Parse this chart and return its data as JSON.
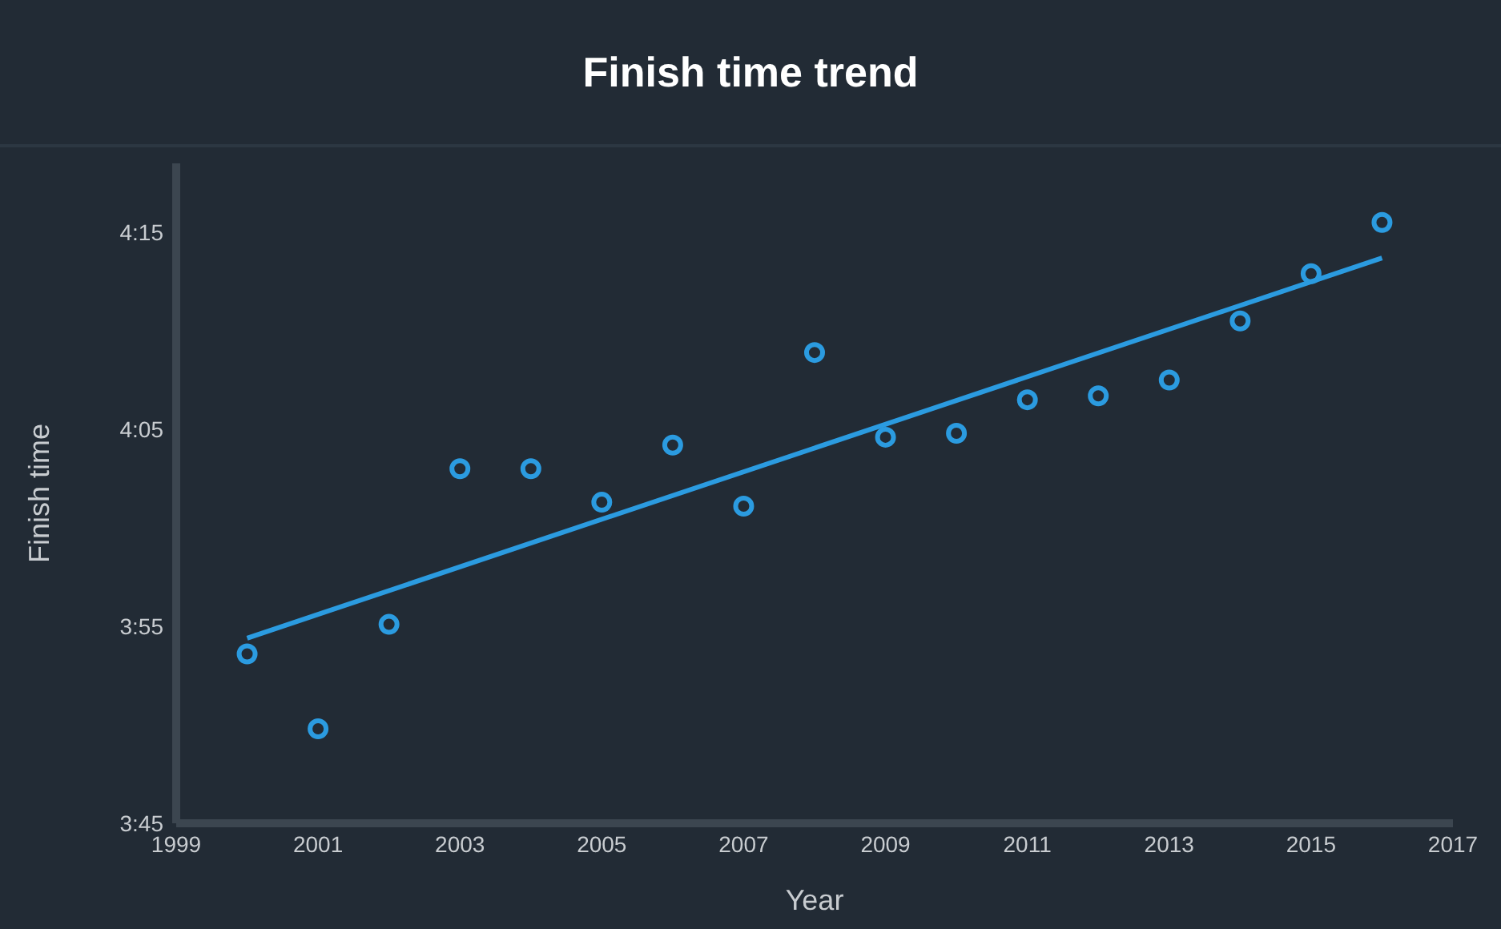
{
  "chart_data": {
    "type": "scatter",
    "title": "Finish time trend",
    "xlabel": "Year",
    "ylabel": "Finish time",
    "xlim": [
      1999,
      2017
    ],
    "xticks": [
      1999,
      2001,
      2003,
      2005,
      2007,
      2009,
      2011,
      2013,
      2015,
      2017
    ],
    "ylim": [
      225,
      258.5
    ],
    "yticks": [
      {
        "value": 225,
        "label": "3:45"
      },
      {
        "value": 235,
        "label": "3:55"
      },
      {
        "value": 245,
        "label": "4:05"
      },
      {
        "value": 255,
        "label": "4:15"
      }
    ],
    "grid": false,
    "legend": false,
    "x": [
      2000,
      2001,
      2002,
      2003,
      2004,
      2005,
      2006,
      2007,
      2008,
      2009,
      2010,
      2011,
      2012,
      2013,
      2014,
      2015,
      2016
    ],
    "series": [
      {
        "color": "#2b9be0",
        "marker": "circle",
        "values": [
          233.6,
          229.8,
          235.1,
          243.0,
          243.0,
          241.3,
          244.2,
          241.1,
          248.9,
          244.6,
          244.8,
          246.5,
          246.7,
          247.5,
          250.5,
          252.9,
          255.5
        ]
      },
      {
        "type": "line",
        "color": "#2b9be0",
        "marker": "none",
        "line_style": "solid",
        "x": [
          2000,
          2016
        ],
        "values": [
          234.4,
          253.7
        ]
      }
    ]
  }
}
